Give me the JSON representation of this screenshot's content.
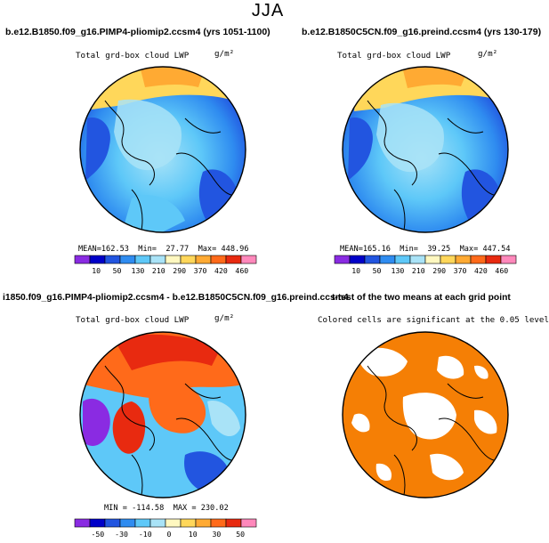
{
  "figure": {
    "season": "JJA"
  },
  "panels": [
    {
      "title": "b.e12.B1850.f09_g16.PIMP4-pliomip2.ccsm4 (yrs 1051-1100)",
      "variable": "Total grd-box cloud LWP",
      "units": "g/m²",
      "stats": {
        "mean_label": "MEAN=",
        "mean": "162.53",
        "min_label": "Min=",
        "min": "27.77",
        "max_label": "Max=",
        "max": "448.96"
      }
    },
    {
      "title": "b.e12.B1850C5CN.f09_g16.preind.ccsm4 (yrs 130-179)",
      "variable": "Total grd-box cloud LWP",
      "units": "g/m²",
      "stats": {
        "mean_label": "MEAN=",
        "mean": "165.16",
        "min_label": "Min=",
        "min": "39.25",
        "max_label": "Max=",
        "max": "447.54"
      }
    },
    {
      "title": "i1850.f09_g16.PIMP4-pliomip2.ccsm4 - b.e12.B1850C5CN.f09_g16.preind.ccsm4",
      "variable": "Total grd-box cloud LWP",
      "units": "g/m²",
      "stats": {
        "min_label": "MIN =",
        "min": "-114.58",
        "max_label": "MAX =",
        "max": "230.02"
      }
    },
    {
      "title": "t-test of the two means at each grid point",
      "subtitle": "Colored cells are significant at the 0.05 level"
    }
  ],
  "colorbars": {
    "absolute": {
      "labels": [
        "10",
        "50",
        "130",
        "210",
        "290",
        "370",
        "420",
        "460"
      ],
      "colors": [
        "#8a2be2",
        "#0000c8",
        "#2255e0",
        "#2f8cf0",
        "#5ec8f8",
        "#a9e3f7",
        "#fff8c0",
        "#ffd75a",
        "#ffaa33",
        "#ff6a1a",
        "#e82a10",
        "#ff88bb"
      ]
    },
    "difference": {
      "labels": [
        "-50",
        "-30",
        "-10",
        "0",
        "10",
        "30",
        "50"
      ],
      "colors": [
        "#8a2be2",
        "#0000c8",
        "#2255e0",
        "#2f8cf0",
        "#5ec8f8",
        "#a9e3f7",
        "#fff8c0",
        "#ffd75a",
        "#ffaa33",
        "#ff6a1a",
        "#e82a10",
        "#ff88bb"
      ]
    }
  },
  "chart_data": [
    {
      "type": "heatmap",
      "title": "b.e12.B1850.f09_g16.PIMP4-pliomip2.ccsm4 (yrs 1051-1100)",
      "variable": "Total grd-box cloud LWP",
      "units": "g/m²",
      "projection": "north polar stereographic",
      "mean": 162.53,
      "min": 27.77,
      "max": 448.96,
      "contour_levels": [
        10,
        50,
        130,
        210,
        290,
        370,
        420,
        460
      ]
    },
    {
      "type": "heatmap",
      "title": "b.e12.B1850C5CN.f09_g16.preind.ccsm4 (yrs 130-179)",
      "variable": "Total grd-box cloud LWP",
      "units": "g/m²",
      "projection": "north polar stereographic",
      "mean": 165.16,
      "min": 39.25,
      "max": 447.54,
      "contour_levels": [
        10,
        50,
        130,
        210,
        290,
        370,
        420,
        460
      ]
    },
    {
      "type": "heatmap",
      "title": "i1850.f09_g16.PIMP4-pliomip2.ccsm4 - b.e12.B1850C5CN.f09_g16.preind.ccsm4",
      "variable": "Total grd-box cloud LWP",
      "units": "g/m²",
      "projection": "north polar stereographic",
      "min": -114.58,
      "max": 230.02,
      "contour_levels": [
        -50,
        -30,
        -10,
        0,
        10,
        30,
        50
      ]
    },
    {
      "type": "heatmap",
      "title": "t-test of the two means at each grid point",
      "subtitle": "Colored cells are significant at the 0.05 level",
      "significance_level": 0.05,
      "significant_color": "#f57f05"
    }
  ]
}
